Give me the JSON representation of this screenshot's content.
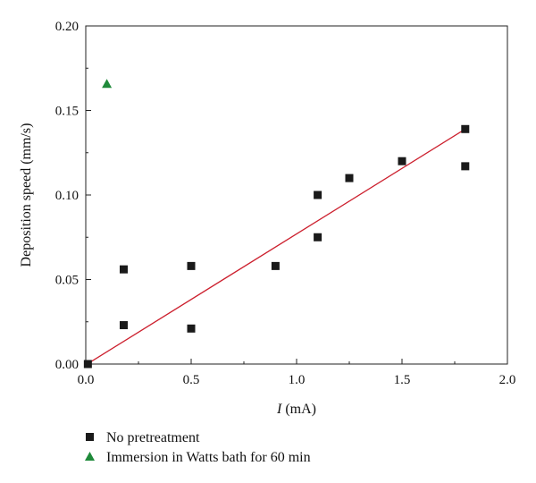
{
  "chart_data": {
    "type": "scatter",
    "xlabel_var": "I",
    "xlabel_unit": " (mA)",
    "ylabel": "Deposition speed (mm/s)",
    "xlim": [
      0,
      2
    ],
    "ylim": [
      0,
      0.2
    ],
    "xticks": [
      "0.0",
      "0.5",
      "1.0",
      "1.5",
      "2.0"
    ],
    "yticks": [
      "0.00",
      "0.05",
      "0.10",
      "0.15",
      "0.20"
    ],
    "xtick_values": [
      0,
      0.5,
      1.0,
      1.5,
      2.0
    ],
    "ytick_values": [
      0,
      0.05,
      0.1,
      0.15,
      0.2
    ],
    "grid": false,
    "legend_position": "below",
    "series": [
      {
        "name": "No pretreatment",
        "marker": "square",
        "color": "#1a1a1a",
        "points": [
          {
            "x": 0.01,
            "y": 0.0
          },
          {
            "x": 0.18,
            "y": 0.056
          },
          {
            "x": 0.18,
            "y": 0.023
          },
          {
            "x": 0.5,
            "y": 0.058
          },
          {
            "x": 0.5,
            "y": 0.021
          },
          {
            "x": 0.9,
            "y": 0.058
          },
          {
            "x": 1.1,
            "y": 0.1
          },
          {
            "x": 1.1,
            "y": 0.075
          },
          {
            "x": 1.25,
            "y": 0.11
          },
          {
            "x": 1.5,
            "y": 0.12
          },
          {
            "x": 1.8,
            "y": 0.139
          },
          {
            "x": 1.8,
            "y": 0.117
          }
        ]
      },
      {
        "name": "Immersion in Watts bath for 60 min",
        "marker": "triangle",
        "color": "#1f8a3a",
        "points": [
          {
            "x": 0.1,
            "y": 0.166
          }
        ]
      }
    ],
    "fit_line": {
      "color": "#cc1f2d",
      "x": [
        0.02,
        1.8
      ],
      "y": [
        0.001,
        0.139
      ]
    }
  }
}
